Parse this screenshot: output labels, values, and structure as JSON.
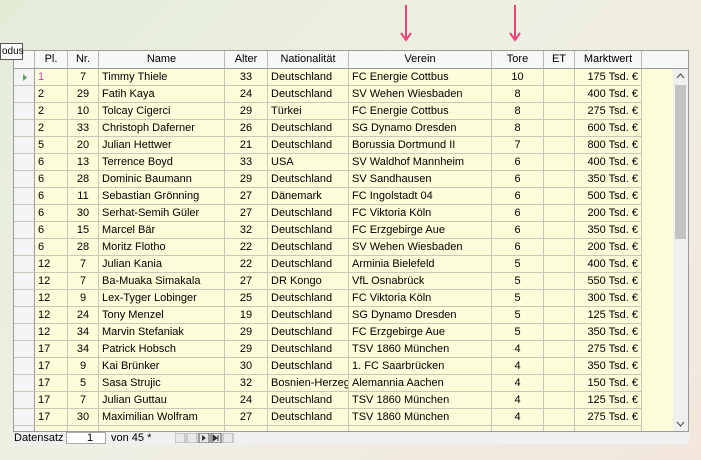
{
  "tooltip": "odus",
  "table": {
    "columns": [
      "Pl.",
      "Nr.",
      "Name",
      "Alter",
      "Nationalität",
      "Verein",
      "Tore",
      "ET",
      "Marktwert"
    ],
    "rows": [
      {
        "pl": 1,
        "nr": 7,
        "name": "Timmy Thiele",
        "alter": 33,
        "nat": "Deutschland",
        "verein": "FC Energie Cottbus",
        "tore": 10,
        "wert": "175 Tsd. €"
      },
      {
        "pl": 2,
        "nr": 29,
        "name": "Fatih Kaya",
        "alter": 24,
        "nat": "Deutschland",
        "verein": "SV Wehen Wiesbaden",
        "tore": 8,
        "wert": "400 Tsd. €"
      },
      {
        "pl": 2,
        "nr": 10,
        "name": "Tolcay Cigerci",
        "alter": 29,
        "nat": "Türkei",
        "verein": "FC Energie Cottbus",
        "tore": 8,
        "wert": "275 Tsd. €"
      },
      {
        "pl": 2,
        "nr": 33,
        "name": "Christoph Daferner",
        "alter": 26,
        "nat": "Deutschland",
        "verein": "SG Dynamo Dresden",
        "tore": 8,
        "wert": "600 Tsd. €"
      },
      {
        "pl": 5,
        "nr": 20,
        "name": "Julian Hettwer",
        "alter": 21,
        "nat": "Deutschland",
        "verein": "Borussia Dortmund II",
        "tore": 7,
        "wert": "800 Tsd. €"
      },
      {
        "pl": 6,
        "nr": 13,
        "name": "Terrence Boyd",
        "alter": 33,
        "nat": "USA",
        "verein": "SV Waldhof Mannheim",
        "tore": 6,
        "wert": "400 Tsd. €"
      },
      {
        "pl": 6,
        "nr": 28,
        "name": "Dominic Baumann",
        "alter": 29,
        "nat": "Deutschland",
        "verein": "SV Sandhausen",
        "tore": 6,
        "wert": "350 Tsd. €"
      },
      {
        "pl": 6,
        "nr": 11,
        "name": "Sebastian Grönning",
        "alter": 27,
        "nat": "Dänemark",
        "verein": "FC Ingolstadt 04",
        "tore": 6,
        "wert": "500 Tsd. €"
      },
      {
        "pl": 6,
        "nr": 30,
        "name": "Serhat-Semih Güler",
        "alter": 27,
        "nat": "Deutschland",
        "verein": "FC Viktoria Köln",
        "tore": 6,
        "wert": "200 Tsd. €"
      },
      {
        "pl": 6,
        "nr": 15,
        "name": "Marcel Bär",
        "alter": 32,
        "nat": "Deutschland",
        "verein": "FC Erzgebirge Aue",
        "tore": 6,
        "wert": "350 Tsd. €"
      },
      {
        "pl": 6,
        "nr": 28,
        "name": "Moritz Flotho",
        "alter": 22,
        "nat": "Deutschland",
        "verein": "SV Wehen Wiesbaden",
        "tore": 6,
        "wert": "200 Tsd. €"
      },
      {
        "pl": 12,
        "nr": 7,
        "name": "Julian Kania",
        "alter": 22,
        "nat": "Deutschland",
        "verein": "Arminia Bielefeld",
        "tore": 5,
        "wert": "400 Tsd. €"
      },
      {
        "pl": 12,
        "nr": 7,
        "name": "Ba-Muaka Simakala",
        "alter": 27,
        "nat": "DR Kongo",
        "verein": "VfL Osnabrück",
        "tore": 5,
        "wert": "550 Tsd. €"
      },
      {
        "pl": 12,
        "nr": 9,
        "name": "Lex-Tyger Lobinger",
        "alter": 25,
        "nat": "Deutschland",
        "verein": "FC Viktoria Köln",
        "tore": 5,
        "wert": "300 Tsd. €"
      },
      {
        "pl": 12,
        "nr": 24,
        "name": "Tony Menzel",
        "alter": 19,
        "nat": "Deutschland",
        "verein": "SG Dynamo Dresden",
        "tore": 5,
        "wert": "125 Tsd. €"
      },
      {
        "pl": 12,
        "nr": 34,
        "name": "Marvin Stefaniak",
        "alter": 29,
        "nat": "Deutschland",
        "verein": "FC Erzgebirge Aue",
        "tore": 5,
        "wert": "350 Tsd. €"
      },
      {
        "pl": 17,
        "nr": 34,
        "name": "Patrick Hobsch",
        "alter": 29,
        "nat": "Deutschland",
        "verein": "TSV 1860 München",
        "tore": 4,
        "wert": "275 Tsd. €"
      },
      {
        "pl": 17,
        "nr": 9,
        "name": "Kai Brünker",
        "alter": 30,
        "nat": "Deutschland",
        "verein": "1. FC Saarbrücken",
        "tore": 4,
        "wert": "350 Tsd. €"
      },
      {
        "pl": 17,
        "nr": 5,
        "name": "Sasa Strujic",
        "alter": 32,
        "nat": "Bosnien-Herzeg",
        "verein": "Alemannia Aachen",
        "tore": 4,
        "wert": "150 Tsd. €"
      },
      {
        "pl": 17,
        "nr": 7,
        "name": "Julian Guttau",
        "alter": 24,
        "nat": "Deutschland",
        "verein": "TSV 1860 München",
        "tore": 4,
        "wert": "125 Tsd. €"
      },
      {
        "pl": 17,
        "nr": 30,
        "name": "Maximilian Wolfram",
        "alter": 27,
        "nat": "Deutschland",
        "verein": "TSV 1860 München",
        "tore": 4,
        "wert": "275 Tsd. €"
      }
    ]
  },
  "footer": {
    "label": "Datensatz",
    "record": 1,
    "total": "von 45 *"
  }
}
